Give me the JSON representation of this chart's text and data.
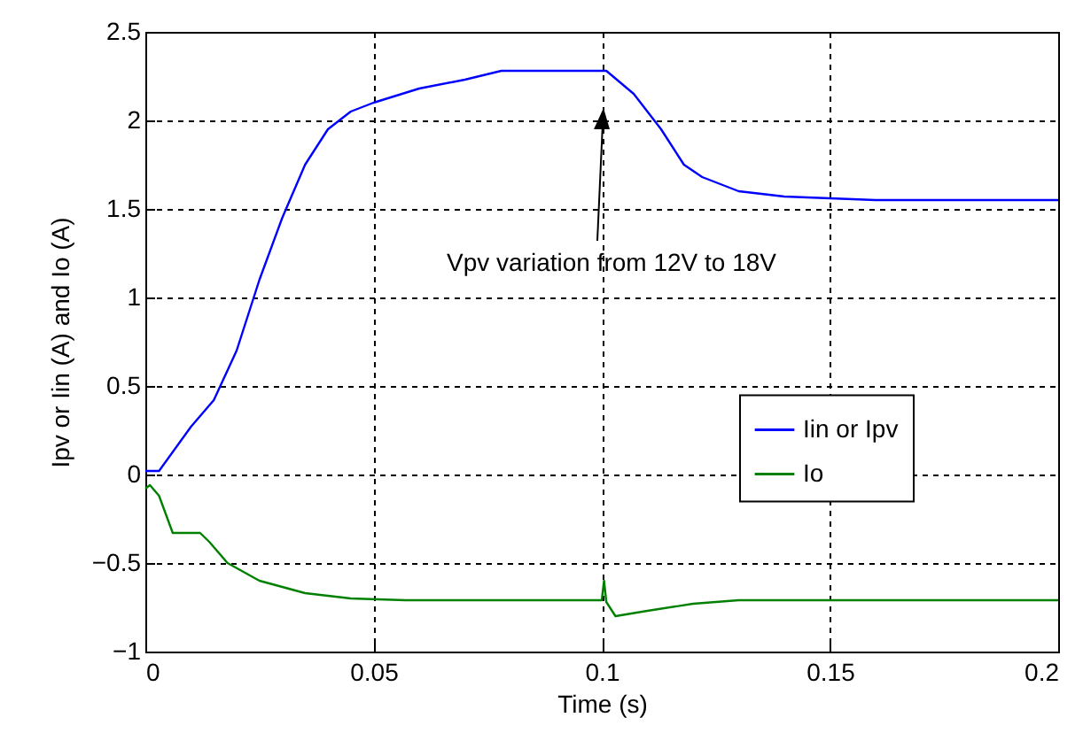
{
  "chart_data": {
    "type": "line",
    "xlabel": "Time (s)",
    "ylabel": "Ipv or Iin (A) and Io (A)",
    "xlim": [
      0,
      0.2
    ],
    "xticks": [
      0,
      0.05,
      0.1,
      0.15,
      0.2
    ],
    "ylim": [
      -1,
      2.5
    ],
    "yticks": [
      -1,
      -0.5,
      0,
      0.5,
      1,
      1.5,
      2,
      2.5
    ],
    "grid": true,
    "legend": "bottom right",
    "line_style": "solid",
    "annotations": [
      "Vpv variation from 12V to 18V"
    ],
    "series": [
      {
        "name": "Iin or Ipv",
        "color": "#0000ff",
        "x": [
          0,
          0.003,
          0.01,
          0.015,
          0.02,
          0.025,
          0.03,
          0.035,
          0.04,
          0.045,
          0.05,
          0.06,
          0.07,
          0.078,
          0.101,
          0.107,
          0.113,
          0.118,
          0.122,
          0.13,
          0.14,
          0.15,
          0.16,
          0.2
        ],
        "values": [
          0.02,
          0.02,
          0.27,
          0.42,
          0.7,
          1.1,
          1.45,
          1.75,
          1.95,
          2.05,
          2.1,
          2.18,
          2.23,
          2.28,
          2.28,
          2.15,
          1.95,
          1.75,
          1.68,
          1.6,
          1.57,
          1.56,
          1.55,
          1.55
        ]
      },
      {
        "name": "Io",
        "color": "#008000",
        "x": [
          0,
          0.001,
          0.003,
          0.006,
          0.012,
          0.014,
          0.018,
          0.025,
          0.035,
          0.045,
          0.057,
          0.1,
          0.1005,
          0.101,
          0.103,
          0.11,
          0.12,
          0.13,
          0.2
        ],
        "values": [
          -0.08,
          -0.06,
          -0.12,
          -0.33,
          -0.33,
          -0.38,
          -0.5,
          -0.6,
          -0.67,
          -0.7,
          -0.71,
          -0.71,
          -0.6,
          -0.72,
          -0.8,
          -0.77,
          -0.73,
          -0.71,
          -0.71
        ]
      }
    ]
  }
}
